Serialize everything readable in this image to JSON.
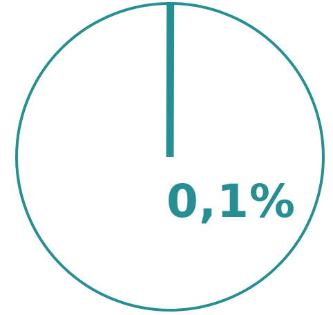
{
  "chart_data": {
    "type": "pie",
    "title": "",
    "slices": [
      {
        "label": "",
        "value": 0.1
      },
      {
        "label": "",
        "value": 99.9
      }
    ],
    "data_label": "0,1%",
    "colors": {
      "accent": "#258F94",
      "background": "#ffffff"
    }
  }
}
